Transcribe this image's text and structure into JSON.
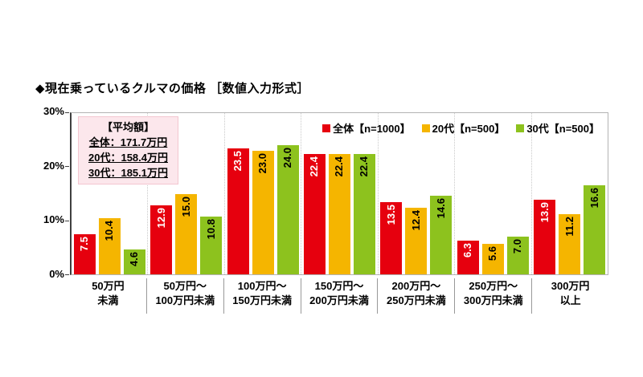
{
  "title": "◆現在乗っているクルマの価格 ［数値入力形式］",
  "average_box": {
    "heading": "【平均額】",
    "lines": [
      "全体：171.7万円",
      "20代：158.4万円",
      "30代：185.1万円"
    ]
  },
  "colors": {
    "red": "#e6000e",
    "yellow": "#f5b500",
    "green": "#8dc21e",
    "avg_box_bg": "#fce7ec",
    "avg_box_border": "#f3c6d0",
    "plot_border": "#b3b3b3",
    "axis": "#404040",
    "gridline": "#c9c9c9",
    "separator": "#999999"
  },
  "chart_data": {
    "type": "bar",
    "title": "◆現在乗っているクルマの価格 ［数値入力形式］",
    "categories": [
      [
        "50万円",
        "未満"
      ],
      [
        "50万円～",
        "100万円未満"
      ],
      [
        "100万円～",
        "150万円未満"
      ],
      [
        "150万円～",
        "200万円未満"
      ],
      [
        "200万円～",
        "250万円未満"
      ],
      [
        "250万円～",
        "300万円未満"
      ],
      [
        "300万円",
        "以上"
      ]
    ],
    "series": [
      {
        "name": "全体【n=1000】",
        "color": "#e6000e",
        "label_color": "#ffffff",
        "values": [
          7.5,
          12.9,
          23.5,
          22.4,
          13.5,
          6.3,
          13.9
        ],
        "value_labels": [
          "7.5",
          "12.9",
          "23.5",
          "22.4",
          "13.5",
          "6.3",
          "13.9"
        ]
      },
      {
        "name": "20代【n=500】",
        "color": "#f5b500",
        "label_color": "#000000",
        "values": [
          10.4,
          15.0,
          23.0,
          22.4,
          12.4,
          5.6,
          11.2
        ],
        "value_labels": [
          "10.4",
          "15.0",
          "23.0",
          "22.4",
          "12.4",
          "5.6",
          "11.2"
        ]
      },
      {
        "name": "30代【n=500】",
        "color": "#8dc21e",
        "label_color": "#000000",
        "values": [
          4.6,
          10.8,
          24.0,
          22.4,
          14.6,
          7.0,
          16.6
        ],
        "value_labels": [
          "4.6",
          "10.8",
          "24.0",
          "22.4",
          "14.6",
          "7.0",
          "16.6"
        ]
      }
    ],
    "ylim": [
      0,
      30
    ],
    "yticks": [
      "30%",
      "20%",
      "10%",
      "0%"
    ],
    "yaxis_unit": "%",
    "grid": "vertical dotted lines between categories",
    "legend_position": "top-right inside plot"
  }
}
